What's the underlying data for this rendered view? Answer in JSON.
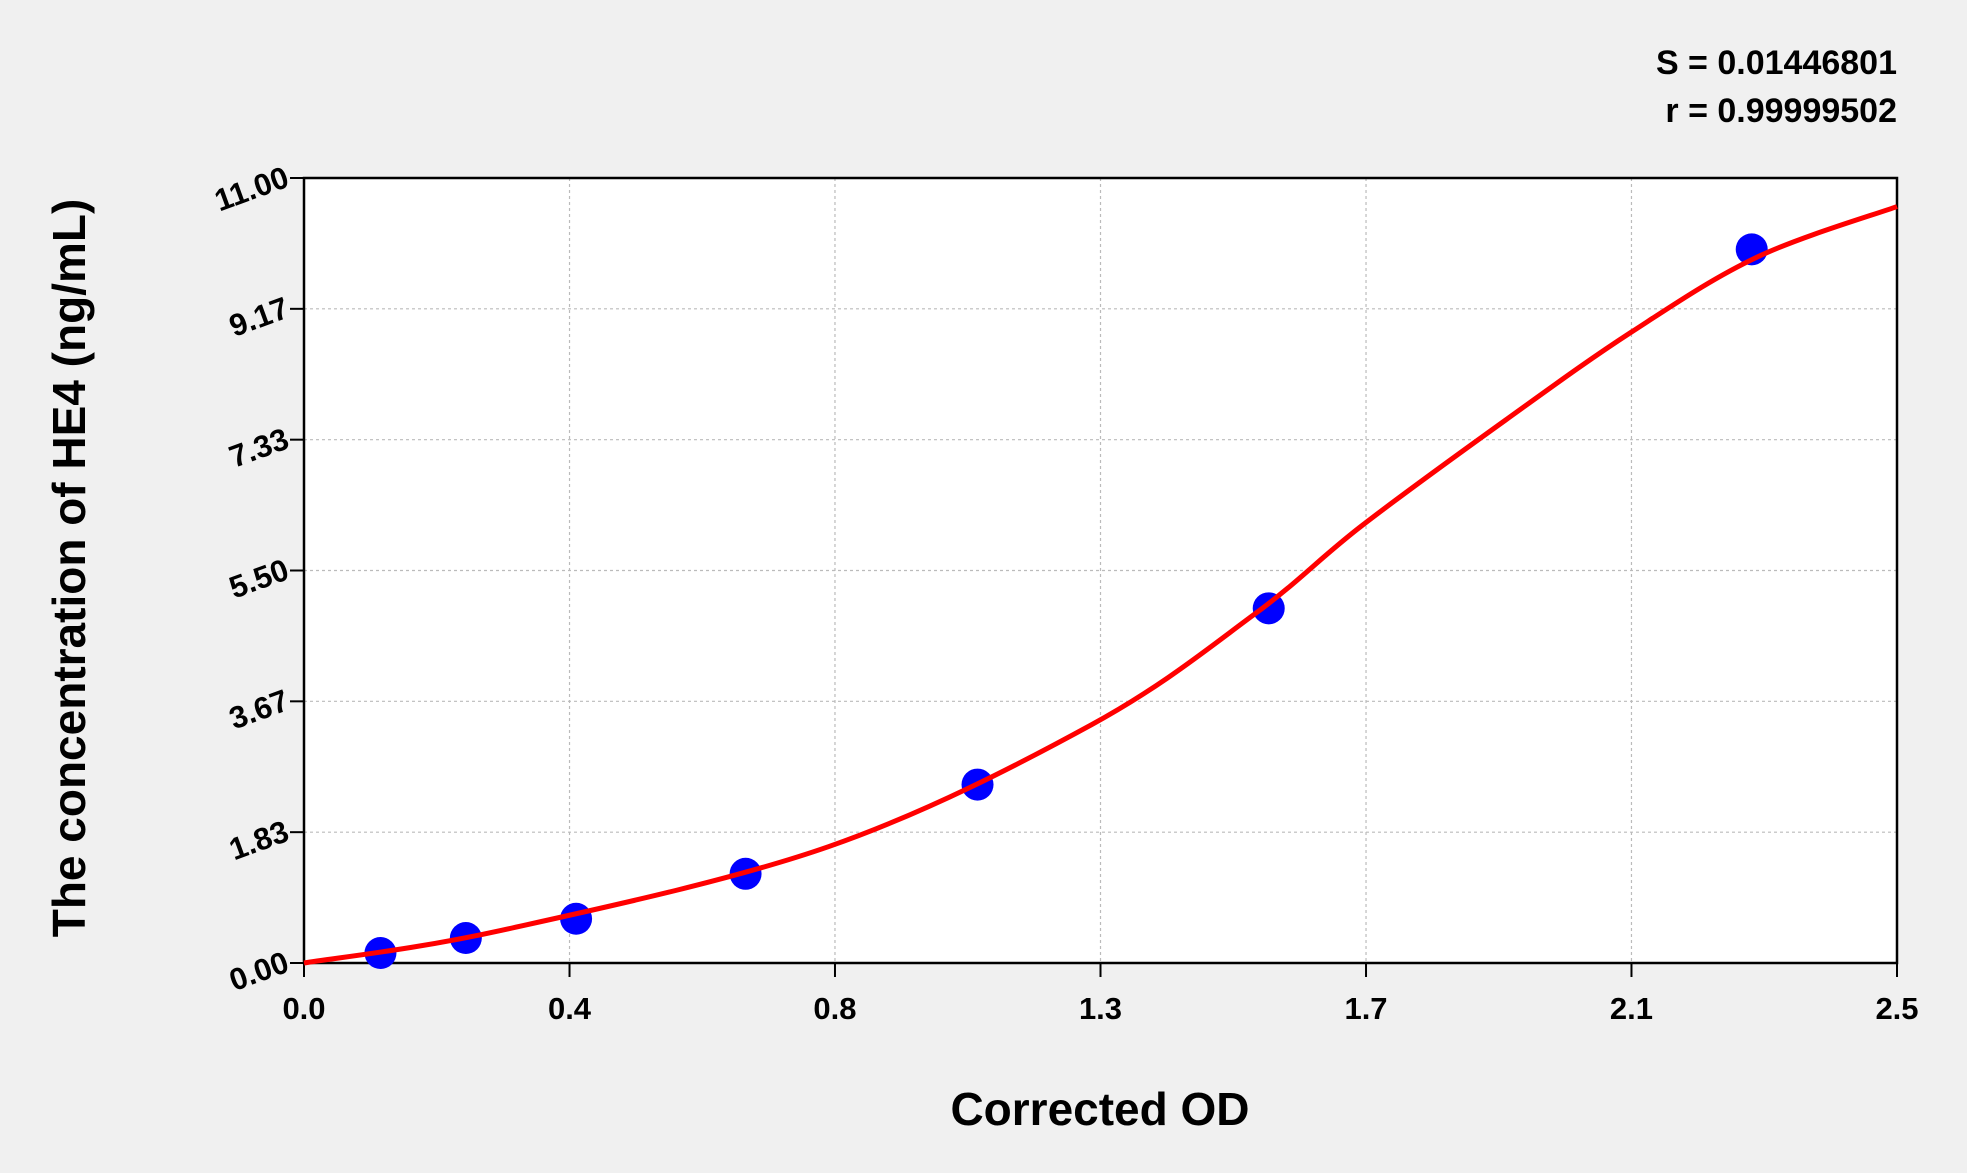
{
  "chart_data": {
    "type": "scatter",
    "annotations": [
      "S = 0.01446801",
      "r = 0.99999502"
    ],
    "x_label": "Corrected OD",
    "y_label": "The concentration of HE4 (ng/mL)",
    "xlim": [
      0,
      2.5
    ],
    "ylim": [
      0,
      11
    ],
    "xticks": [
      {
        "value": 0,
        "label": "0.0"
      },
      {
        "value": 0.4167,
        "label": "0.4"
      },
      {
        "value": 0.8333,
        "label": "0.8"
      },
      {
        "value": 1.25,
        "label": "1.3"
      },
      {
        "value": 1.6667,
        "label": "1.7"
      },
      {
        "value": 2.0833,
        "label": "2.1"
      },
      2.5
    ],
    "yticks": [
      {
        "value": 0,
        "label": "0.00"
      },
      {
        "value": 1.8333,
        "label": "1.83"
      },
      {
        "value": 3.6667,
        "label": "3.67"
      },
      {
        "value": 5.5,
        "label": "5.50"
      },
      {
        "value": 7.3333,
        "label": "7.33"
      },
      {
        "value": 9.1667,
        "label": "9.17"
      },
      {
        "value": 11,
        "label": "11.00"
      }
    ],
    "grid": true,
    "series": [
      {
        "type": "scatter",
        "color": "#0000ff",
        "x": [
          0.12,
          0.254,
          0.427,
          0.693,
          1.057,
          1.514,
          2.272
        ],
        "values": [
          0.14,
          0.35,
          0.62,
          1.25,
          2.5,
          4.97,
          10.0
        ]
      },
      {
        "type": "line",
        "color": "#ff0000",
        "x": [
          0,
          0.311,
          0.823,
          1.236,
          1.492,
          1.659,
          1.886,
          2.083,
          2.28,
          2.5
        ],
        "values": [
          0,
          0.46,
          1.63,
          3.34,
          4.89,
          6.12,
          7.61,
          8.84,
          9.89,
          10.6
        ]
      }
    ]
  }
}
